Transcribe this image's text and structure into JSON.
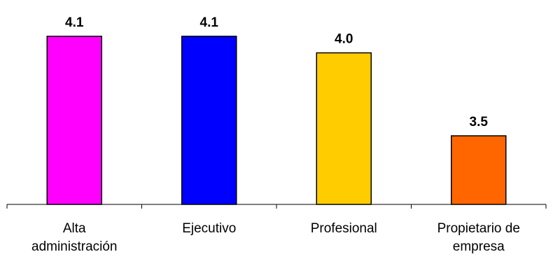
{
  "chart_data": {
    "type": "bar",
    "categories": [
      [
        "Alta",
        "administración"
      ],
      [
        "Ejecutivo"
      ],
      [
        "Profesional"
      ],
      [
        "Propietario de",
        "empresa"
      ]
    ],
    "values": [
      4.1,
      4.1,
      4.0,
      3.5
    ],
    "value_labels": [
      "4.1",
      "4.1",
      "4.0",
      "3.5"
    ],
    "colors": [
      "#FF00FF",
      "#0000FF",
      "#FFCC00",
      "#FF6600"
    ],
    "title": "",
    "xlabel": "",
    "ylabel": "",
    "grid": false,
    "legend": "none"
  }
}
